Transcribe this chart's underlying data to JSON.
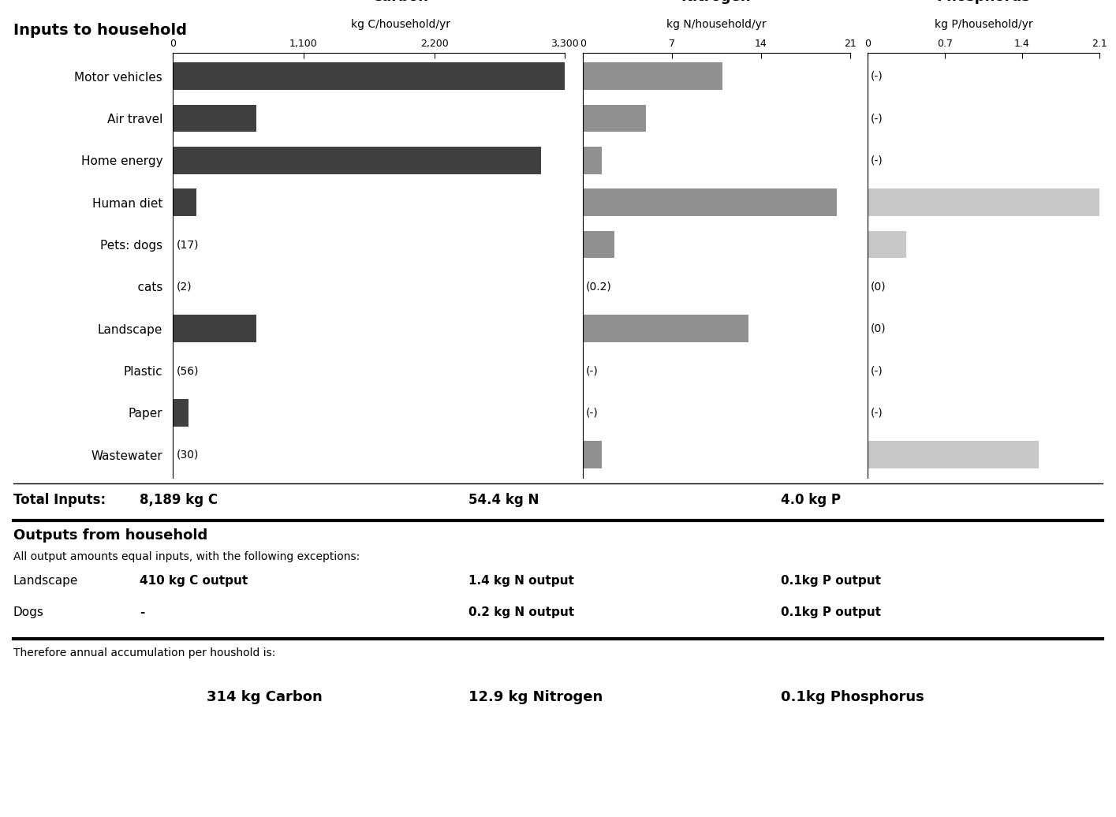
{
  "title_top": "Inputs to household",
  "categories": [
    "Motor vehicles",
    "Air travel",
    "Home energy",
    "Human diet",
    "Pets: dogs",
    "    cats",
    "Landscape",
    "Plastic",
    "Paper",
    "Wastewater"
  ],
  "carbon_values": [
    3300,
    700,
    3100,
    200,
    null,
    null,
    700,
    null,
    130,
    null
  ],
  "carbon_labels": [
    null,
    null,
    null,
    null,
    "(17)",
    "(2)",
    null,
    "(56)",
    null,
    "(30)"
  ],
  "nitrogen_values": [
    11,
    5,
    1.5,
    20,
    2.5,
    null,
    13,
    null,
    null,
    1.5
  ],
  "nitrogen_labels": [
    null,
    null,
    null,
    null,
    null,
    "(0.2)",
    null,
    "(-)",
    "(-)",
    null
  ],
  "phosphorus_values": [
    null,
    null,
    null,
    2.1,
    0.35,
    null,
    null,
    null,
    null,
    1.55
  ],
  "phosphorus_labels": [
    "(-)",
    "(-)",
    "(-)",
    null,
    null,
    "(0)",
    "(0)",
    "(-)",
    "(-)",
    null
  ],
  "carbon_xlim": [
    0,
    3300
  ],
  "carbon_xticks": [
    0,
    1100,
    2200,
    3300
  ],
  "carbon_xtick_labels": [
    "0",
    "1,100",
    "2,200",
    "3,300"
  ],
  "nitrogen_xlim": [
    0,
    21
  ],
  "nitrogen_xticks": [
    0,
    7,
    14,
    21
  ],
  "nitrogen_xtick_labels": [
    "0",
    "7",
    "14",
    "21"
  ],
  "phosphorus_xlim": [
    0,
    2.1
  ],
  "phosphorus_xticks": [
    0,
    0.7,
    1.4,
    2.1
  ],
  "phosphorus_xtick_labels": [
    "0",
    "0.7",
    "1.4",
    "2.1"
  ],
  "carbon_color": "#404040",
  "nitrogen_color": "#909090",
  "phosphorus_color": "#c8c8c8",
  "outputs_title": "Outputs from household",
  "outputs_sub": "All output amounts equal inputs, with the following exceptions:",
  "outputs_row1_label": "Landscape",
  "outputs_row1_c": "410 kg C output",
  "outputs_row1_n": "1.4 kg N output",
  "outputs_row1_p": "0.1kg P output",
  "outputs_row2_label": "Dogs",
  "outputs_row2_c": "-",
  "outputs_row2_n": "0.2 kg N output",
  "outputs_row2_p": "0.1kg P output",
  "accum_line1": "Therefore annual accumulation per houshold is:",
  "accum_c": "314 kg Carbon",
  "accum_n": "12.9 kg Nitrogen",
  "accum_p": "0.1kg Phosphorus"
}
